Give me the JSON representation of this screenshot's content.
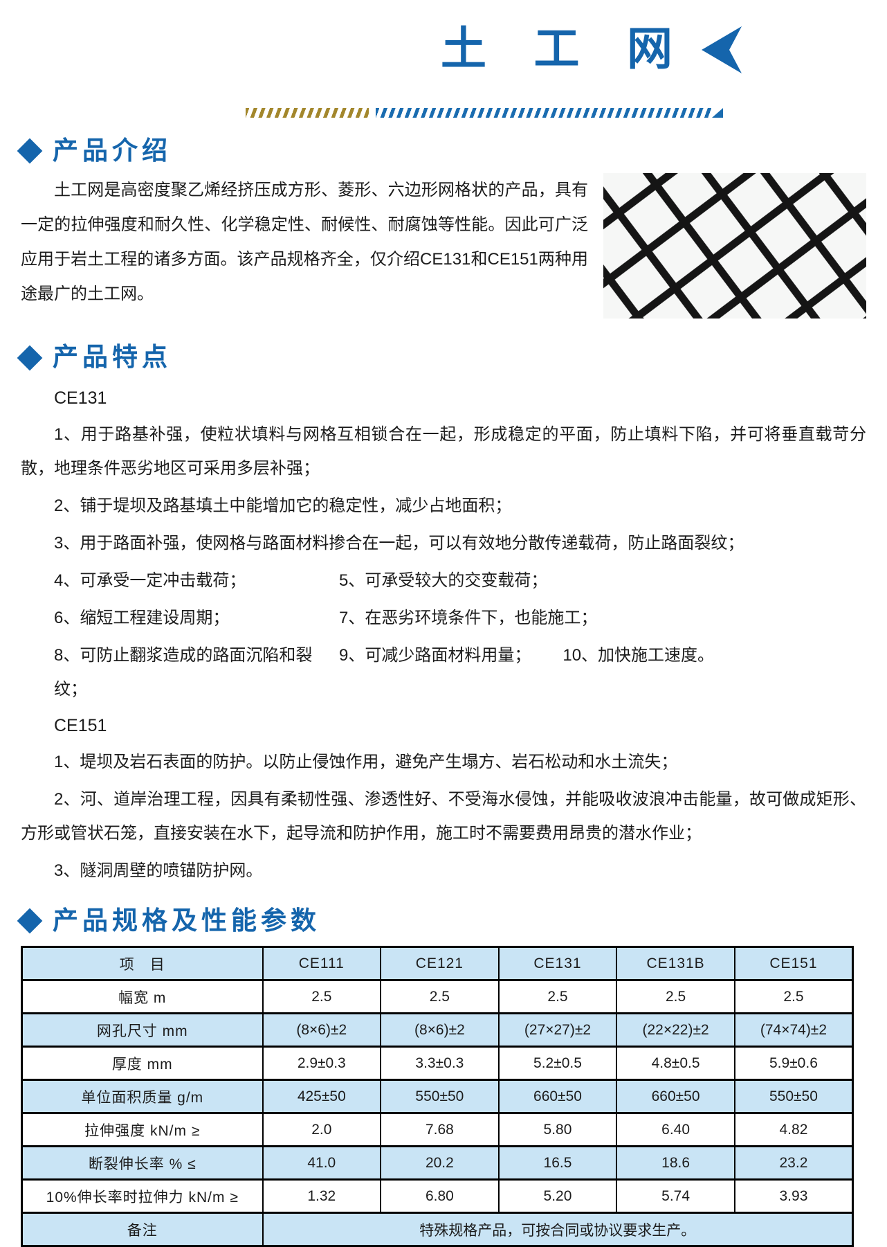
{
  "page": {
    "title": "土 工 网"
  },
  "colors": {
    "accent_blue": "#1565ac",
    "stripe_gold": "#a3872c",
    "stripe_blue": "#1a6cb0",
    "table_row_blue": "#c9e4f5"
  },
  "icons": {
    "title_arrow": "left-pointing-arrow",
    "section_bullet": "blue-diamond"
  },
  "sections": {
    "intro": {
      "heading": "产品介绍",
      "body": "土工网是高密度聚乙烯经挤压成方形、菱形、六边形网格状的产品，具有一定的拉伸强度和耐久性、化学稳定性、耐候性、耐腐蚀等性能。因此可广泛应用于岩土工程的诸多方面。该产品规格齐全，仅介绍CE131和CE151两种用途最广的土工网。",
      "photo": "black-plastic-geonet-mesh-photo"
    },
    "features": {
      "heading": "产品特点",
      "ce131": {
        "label": "CE131",
        "item1": "1、用于路基补强，使粒状填料与网格互相锁合在一起，形成稳定的平面，防止填料下陷，并可将垂直载苛分散，地理条件恶劣地区可采用多层补强；",
        "item2": "2、铺于堤坝及路基填土中能增加它的稳定性，减少占地面积；",
        "item3": "3、用于路面补强，使网格与路面材料掺合在一起，可以有效地分散传递载荷，防止路面裂纹；",
        "item4": "4、可承受一定冲击载荷；",
        "item5": "5、可承受较大的交变载荷；",
        "item6": "6、缩短工程建设周期；",
        "item7": "7、在恶劣环境条件下，也能施工；",
        "item8": "8、可防止翻浆造成的路面沉陷和裂纹；",
        "item9": "9、可减少路面材料用量；",
        "item10": "10、加快施工速度。"
      },
      "ce151": {
        "label": "CE151",
        "item1": "1、堤坝及岩石表面的防护。以防止侵蚀作用，避免产生塌方、岩石松动和水土流失；",
        "item2": "2、河、道岸治理工程，因具有柔韧性强、渗透性好、不受海水侵蚀，并能吸收波浪冲击能量，故可做成矩形、方形或管状石笼，直接安装在水下，起导流和防护作用，施工时不需要费用昂贵的潜水作业；",
        "item3": "3、隧洞周壁的喷锚防护网。"
      }
    },
    "specs": {
      "heading": "产品规格及性能参数",
      "table": {
        "header": [
          "项　目",
          "CE111",
          "CE121",
          "CE131",
          "CE131B",
          "CE151"
        ],
        "rows": [
          {
            "label": "幅宽 m",
            "values": [
              "2.5",
              "2.5",
              "2.5",
              "2.5",
              "2.5"
            ]
          },
          {
            "label": "网孔尺寸 mm",
            "values": [
              "(8×6)±2",
              "(8×6)±2",
              "(27×27)±2",
              "(22×22)±2",
              "(74×74)±2"
            ]
          },
          {
            "label": "厚度 mm",
            "values": [
              "2.9±0.3",
              "3.3±0.3",
              "5.2±0.5",
              "4.8±0.5",
              "5.9±0.6"
            ]
          },
          {
            "label": "单位面积质量 g/m",
            "values": [
              "425±50",
              "550±50",
              "660±50",
              "660±50",
              "550±50"
            ]
          },
          {
            "label": "拉伸强度 kN/m ≥",
            "values": [
              "2.0",
              "7.68",
              "5.80",
              "6.40",
              "4.82"
            ]
          },
          {
            "label": "断裂伸长率 % ≤",
            "values": [
              "41.0",
              "20.2",
              "16.5",
              "18.6",
              "23.2"
            ]
          },
          {
            "label": "10%伸长率时拉伸力 kN/m ≥",
            "values": [
              "1.32",
              "6.80",
              "5.20",
              "5.74",
              "3.93"
            ]
          },
          {
            "label": "备注",
            "remark": "特殊规格产品，可按合同或协议要求生产。"
          }
        ]
      }
    }
  }
}
